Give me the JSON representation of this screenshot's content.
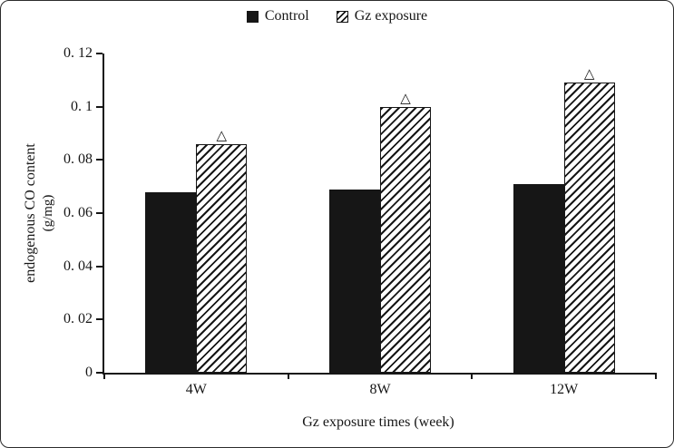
{
  "chart_data": {
    "type": "bar",
    "title": "",
    "categories": [
      "4W",
      "8W",
      "12W"
    ],
    "series": [
      {
        "name": "Control",
        "style": "solid-black",
        "values": [
          0.068,
          0.069,
          0.071
        ]
      },
      {
        "name": "Gz exposure",
        "style": "diagonal-hatch",
        "values": [
          0.086,
          0.1,
          0.109
        ]
      }
    ],
    "xlabel": "Gz exposure times (week)",
    "ylabel": "endogenous CO content (g/mg)",
    "ylabel_lines": [
      "endogenous CO content",
      "(g/mg)"
    ],
    "ylim": [
      0,
      0.12
    ],
    "yticks": [
      {
        "value": 0,
        "label": "0"
      },
      {
        "value": 0.02,
        "label": "0. 02"
      },
      {
        "value": 0.04,
        "label": "0. 04"
      },
      {
        "value": 0.06,
        "label": "0. 06"
      },
      {
        "value": 0.08,
        "label": "0. 08"
      },
      {
        "value": 0.1,
        "label": "0. 1"
      },
      {
        "value": 0.12,
        "label": "0. 12"
      }
    ],
    "grid": false,
    "legend_position": "top-center",
    "annotations": {
      "marker": "△",
      "applies_to_series": "Gz exposure",
      "on_categories": [
        "4W",
        "8W",
        "12W"
      ]
    },
    "colors": {
      "bar": "#161616",
      "axis": "#161616",
      "background": "#ffffff"
    }
  }
}
